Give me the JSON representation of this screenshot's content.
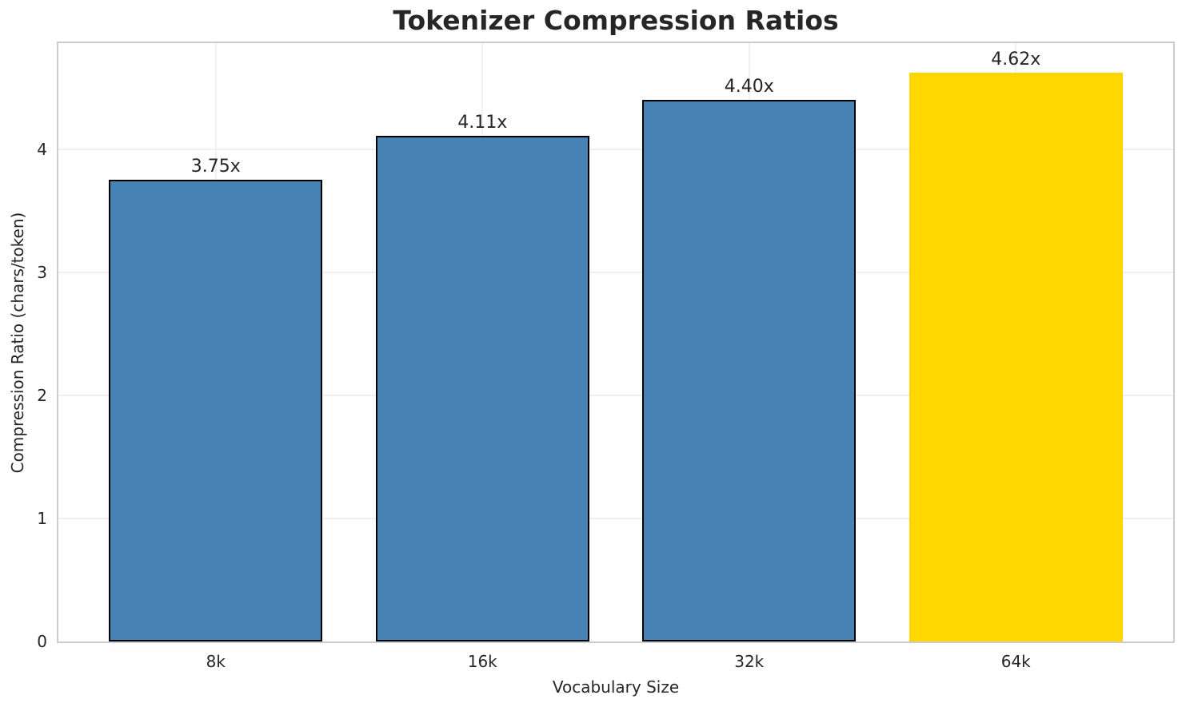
{
  "chart_data": {
    "type": "bar",
    "title": "Tokenizer Compression Ratios",
    "xlabel": "Vocabulary Size",
    "ylabel": "Compression Ratio (chars/token)",
    "categories": [
      "8k",
      "16k",
      "32k",
      "64k"
    ],
    "values": [
      3.75,
      4.11,
      4.4,
      4.62
    ],
    "bar_labels": [
      "3.75x",
      "4.11x",
      "4.40x",
      "4.62x"
    ],
    "yticks": [
      0,
      1,
      2,
      3,
      4
    ],
    "ylim": [
      0,
      4.86
    ],
    "xlim": [
      -0.59,
      3.59
    ],
    "bar_width_units": 0.8,
    "grid": true,
    "legend": false,
    "highlight_index": 3,
    "colors": {
      "bar": "#4682B4",
      "highlight": "#FFD700",
      "bar_edge": "#000000",
      "grid": "#F0F0F0",
      "spine": "#CCCCCC",
      "text": "#262626",
      "background": "#FFFFFF"
    }
  }
}
